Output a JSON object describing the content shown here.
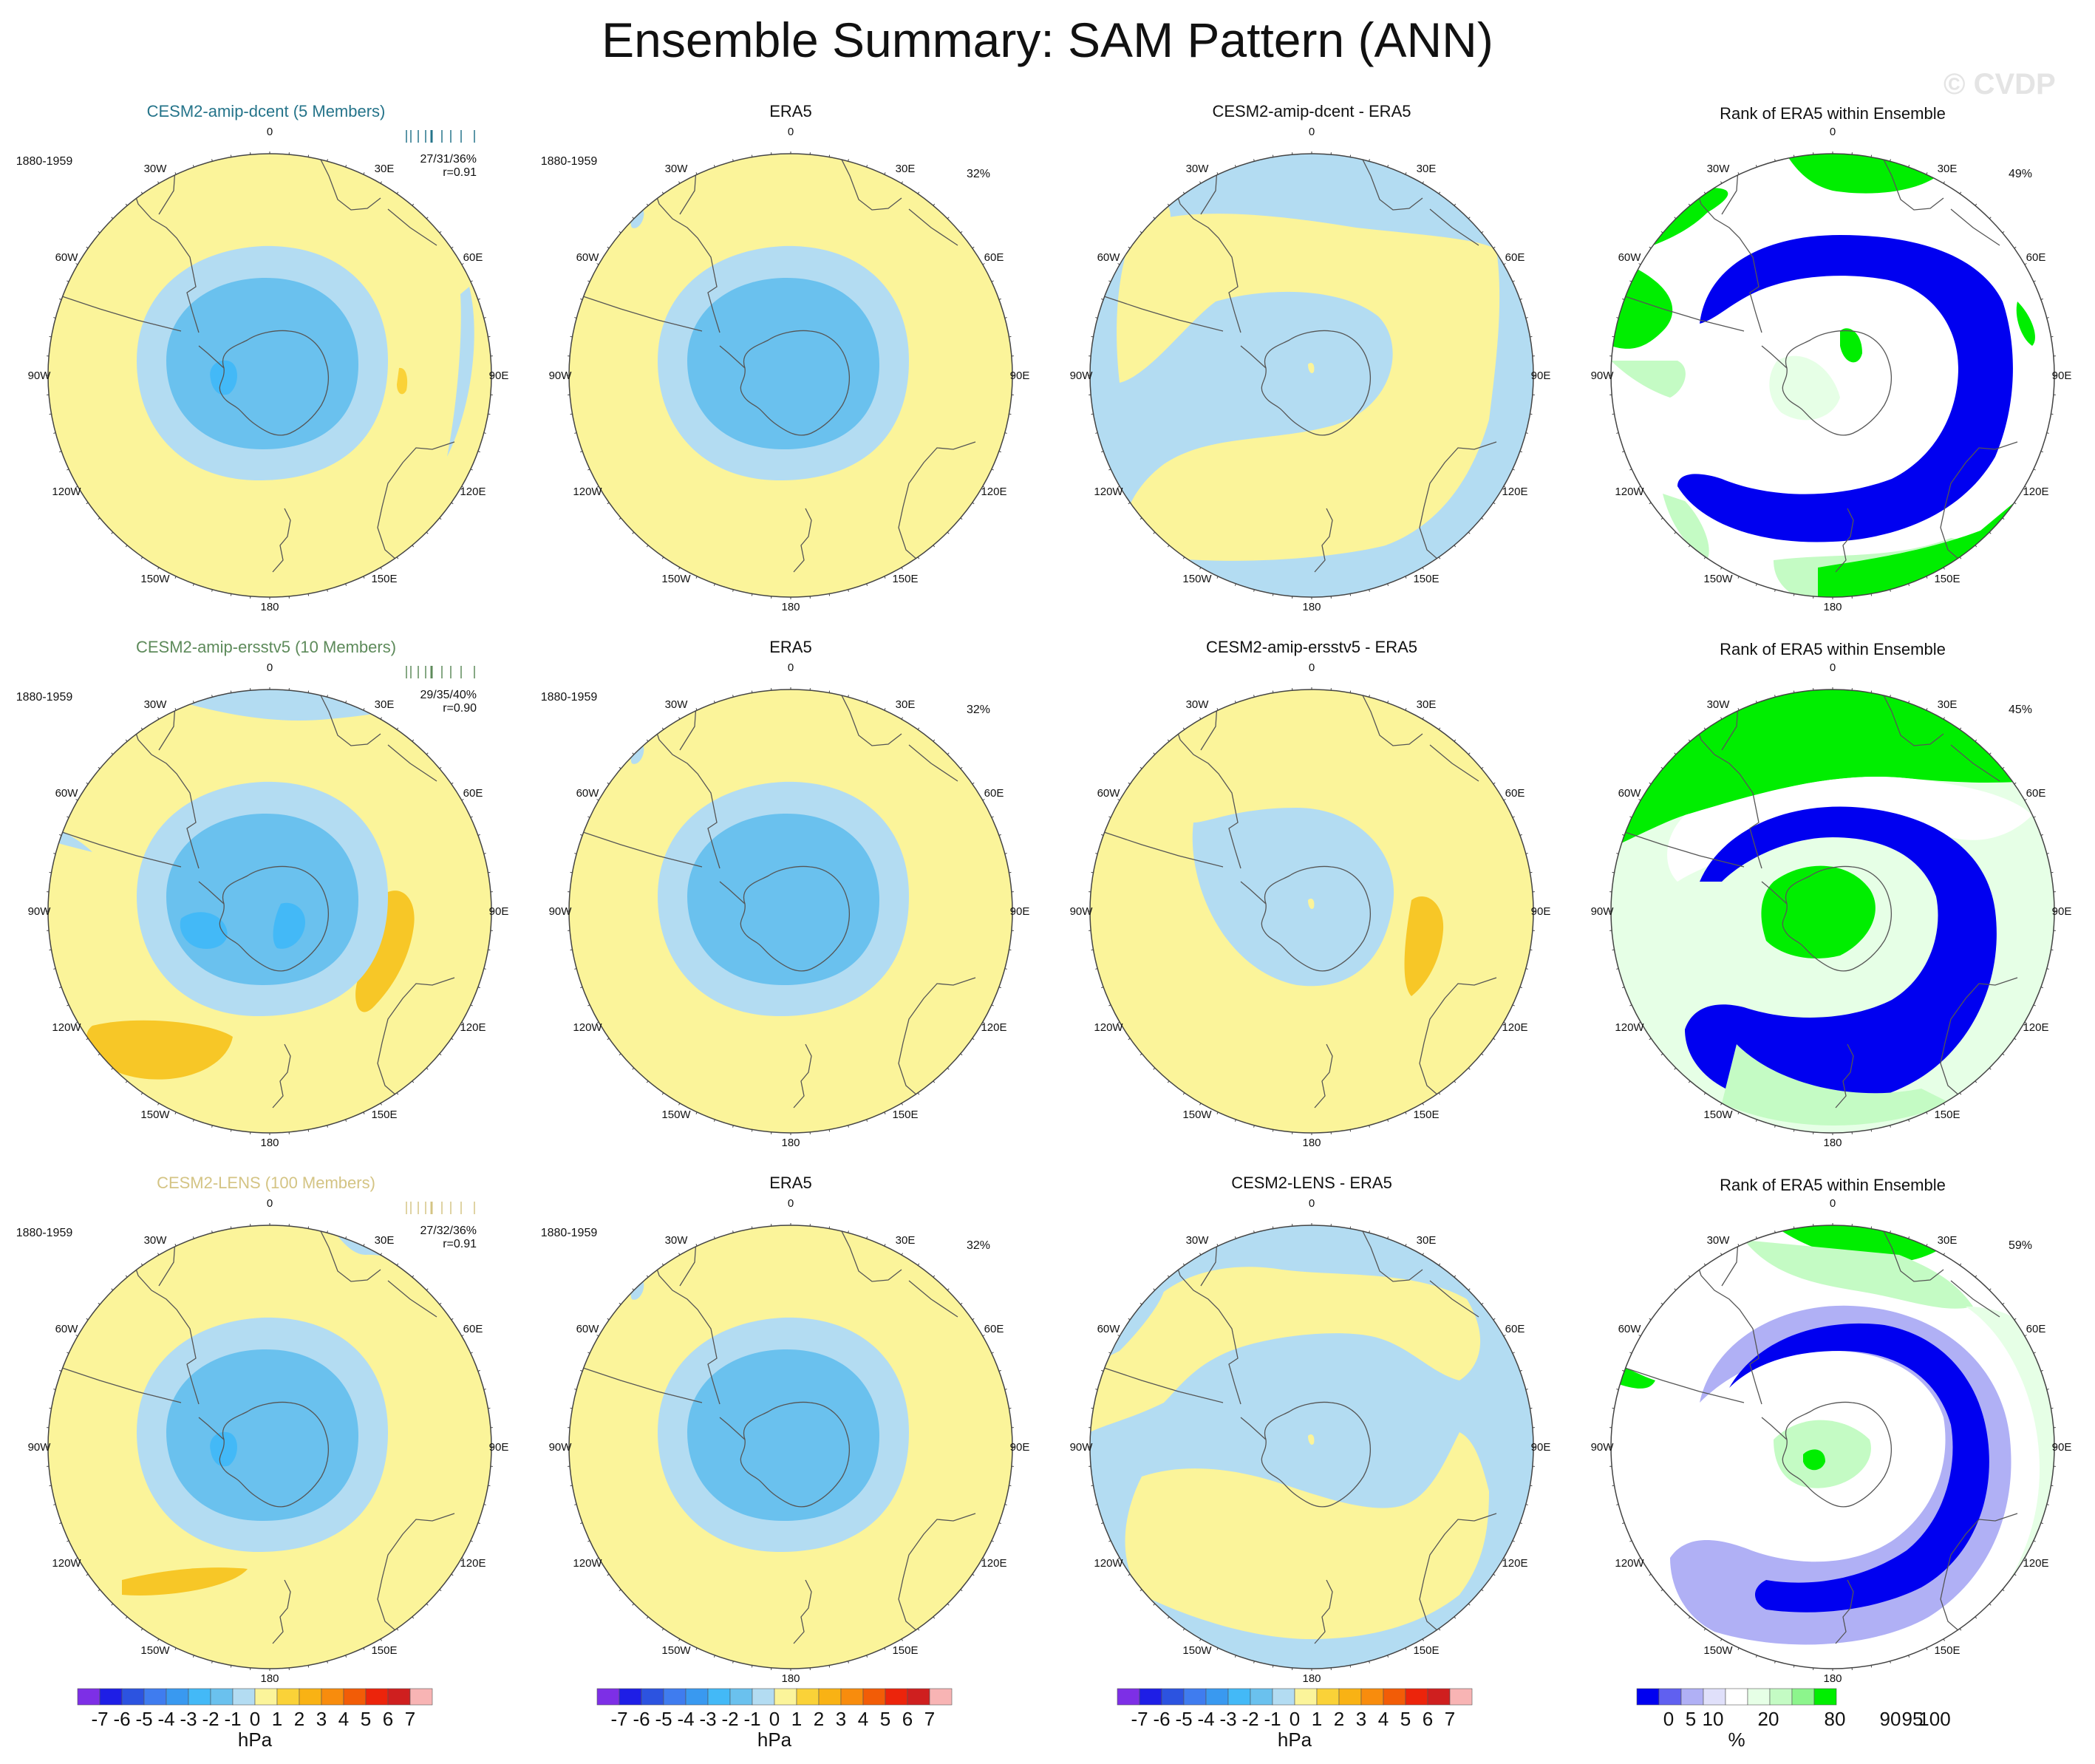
{
  "title": "Ensemble Summary: SAM Pattern (ANN)",
  "watermark": "© CVDP",
  "lon_labels": [
    "0",
    "30E",
    "60E",
    "90E",
    "120E",
    "150E",
    "180",
    "150W",
    "120W",
    "90W",
    "60W",
    "30W"
  ],
  "colors": {
    "pressure": [
      "#7d2fe6",
      "#1e1ee6",
      "#2c53e0",
      "#3f7cef",
      "#3999f0",
      "#43b9f7",
      "#6ac1ee",
      "#b3dcf2",
      "#fbf49a",
      "#fad238",
      "#f9b214",
      "#f88c0d",
      "#f25c07",
      "#ec240b",
      "#cf1f1f",
      "#f8b4b4"
    ],
    "rank": [
      "#0000f0",
      "#6060f0",
      "#b0b0f5",
      "#e0e0fa",
      "#ffffff",
      "#e6ffe6",
      "#c4fbc4",
      "#8cf58c",
      "#00ee00"
    ]
  },
  "rows": [
    {
      "model": {
        "title": "CESM2-amip-dcent (5 Members)",
        "title_color": "#25748a",
        "period": "1880-1959",
        "stats": "27/31/36%",
        "corr": "r=0.91"
      },
      "obs": {
        "title": "ERA5",
        "period": "1880-1959",
        "pct": "32%"
      },
      "diff": {
        "title": "CESM2-amip-dcent - ERA5"
      },
      "rank": {
        "title": "Rank of ERA5 within Ensemble",
        "pct": "49%"
      }
    },
    {
      "model": {
        "title": "CESM2-amip-ersstv5 (10 Members)",
        "title_color": "#5d8a5a",
        "period": "1880-1959",
        "stats": "29/35/40%",
        "corr": "r=0.90"
      },
      "obs": {
        "title": "ERA5",
        "period": "1880-1959",
        "pct": "32%"
      },
      "diff": {
        "title": "CESM2-amip-ersstv5 - ERA5"
      },
      "rank": {
        "title": "Rank of ERA5 within Ensemble",
        "pct": "45%"
      }
    },
    {
      "model": {
        "title": "CESM2-LENS (100 Members)",
        "title_color": "#d4c484",
        "period": "1880-1959",
        "stats": "27/32/36%",
        "corr": "r=0.91"
      },
      "obs": {
        "title": "ERA5",
        "period": "1880-1959",
        "pct": "32%"
      },
      "diff": {
        "title": "CESM2-LENS - ERA5"
      },
      "rank": {
        "title": "Rank of ERA5 within Ensemble",
        "pct": "59%"
      }
    }
  ],
  "colorbars": {
    "pressure": {
      "labels": [
        "-7",
        "-6",
        "-5",
        "-4",
        "-3",
        "-2",
        "-1",
        "0",
        "1",
        "2",
        "3",
        "4",
        "5",
        "6",
        "7"
      ],
      "unit": "hPa"
    },
    "rank": {
      "labels": [
        "0",
        "5",
        "10",
        "20",
        "80",
        "90",
        "95",
        "100"
      ],
      "unit": "%"
    }
  }
}
